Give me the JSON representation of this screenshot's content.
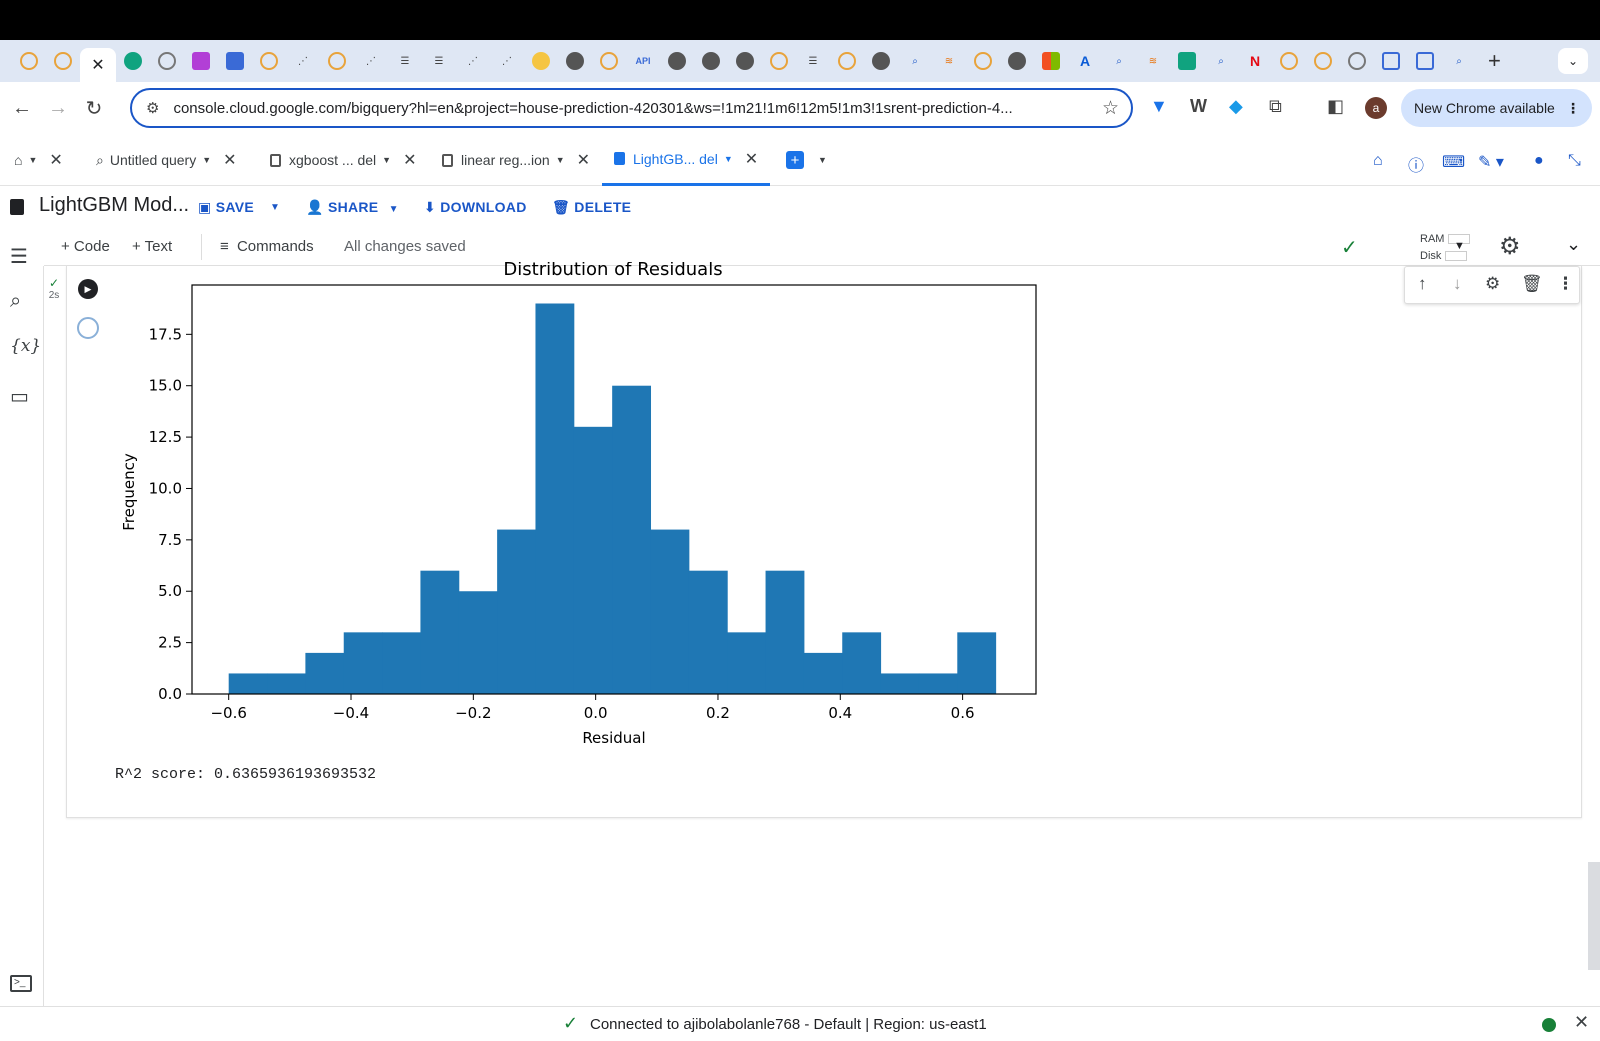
{
  "browser": {
    "address": "console.cloud.google.com/bigquery?hl=en&project=house-prediction-420301&ws=!1m21!1m6!12m5!1m3!1srent-prediction-4...",
    "new_chrome": "New Chrome available",
    "avatar_letter": "a",
    "tab_api_label": "API"
  },
  "colab_tabs": [
    {
      "label": "Untitled query"
    },
    {
      "label": "xgboost ... del"
    },
    {
      "label": "linear reg...ion"
    },
    {
      "label": "LightGB...  del"
    }
  ],
  "notebook": {
    "title": "LightGBM Mod...",
    "save": "SAVE",
    "share": "SHARE",
    "download": "DOWNLOAD",
    "delete": "DELETE",
    "add_code": "+ Code",
    "add_text": "+ Text",
    "commands": "Commands",
    "save_status": "All changes saved",
    "ram": "RAM",
    "disk": "Disk"
  },
  "cell": {
    "exec_time": "2s",
    "output_text": "R^2 score: 0.6365936193693532"
  },
  "chart_data": {
    "type": "bar",
    "title": "Distribution of Residuals",
    "xlabel": "Residual",
    "ylabel": "Frequency",
    "xlim": [
      -0.66,
      0.72
    ],
    "ylim": [
      0,
      19.9
    ],
    "xticks": [
      "−0.6",
      "−0.4",
      "−0.2",
      "0.0",
      "0.2",
      "0.4",
      "0.6"
    ],
    "xtick_values": [
      -0.6,
      -0.4,
      -0.2,
      0.0,
      0.2,
      0.4,
      0.6
    ],
    "yticks": [
      "0.0",
      "2.5",
      "5.0",
      "7.5",
      "10.0",
      "12.5",
      "15.0",
      "17.5"
    ],
    "ytick_values": [
      0,
      2.5,
      5,
      7.5,
      10,
      12.5,
      15,
      17.5
    ],
    "bin_start": -0.6,
    "bin_width": 0.0627,
    "values": [
      1,
      1,
      2,
      3,
      3,
      6,
      5,
      8,
      19,
      13,
      15,
      8,
      6,
      3,
      6,
      2,
      3,
      1,
      1,
      3
    ],
    "color": "#1f77b4"
  },
  "footer": {
    "status": "Connected to ajibolabolanle768 - Default | Region: us-east1"
  }
}
